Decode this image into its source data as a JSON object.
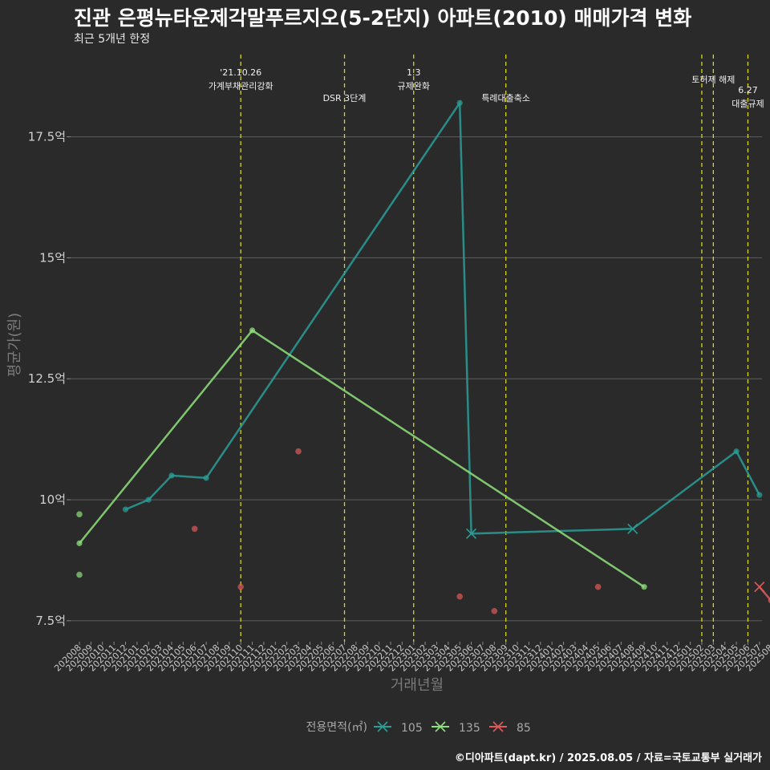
{
  "title": "진관 은평뉴타운제각말푸르지오(5-2단지) 아파트(2010) 매매가격 변화",
  "subtitle": "최근 5개년 한정",
  "caption": "©디아파트(dapt.kr) / 2025.08.05 / 자료=국토교통부 실거래가",
  "chart_data": {
    "type": "line",
    "xlabel": "거래년월",
    "ylabel": "평균가(원)",
    "ylim": [
      7.2,
      19.2
    ],
    "y_ticks": [
      7.5,
      10,
      12.5,
      15,
      17.5
    ],
    "y_tick_labels": [
      "7.5억",
      "10억",
      "12.5억",
      "15억",
      "17.5억"
    ],
    "grid": true,
    "legend_title": "전용면적(㎡)",
    "legend_position": "bottom",
    "x_categories": [
      "202008",
      "202009",
      "202010",
      "202011",
      "202012",
      "202101",
      "202102",
      "202103",
      "202104",
      "202105",
      "202106",
      "202107",
      "202108",
      "202109",
      "202110",
      "202111",
      "202112",
      "202201",
      "202202",
      "202203",
      "202204",
      "202205",
      "202206",
      "202207",
      "202208",
      "202209",
      "202210",
      "202211",
      "202212",
      "202301",
      "202302",
      "202303",
      "202304",
      "202305",
      "202306",
      "202307",
      "202308",
      "202309",
      "202310",
      "202311",
      "202312",
      "202401",
      "202402",
      "202403",
      "202404",
      "202405",
      "202406",
      "202407",
      "202408",
      "202409",
      "202410",
      "202411",
      "202412",
      "202501",
      "202502",
      "202503",
      "202504",
      "202505",
      "202506",
      "202507",
      "202508"
    ],
    "events": [
      {
        "x": "202110",
        "lines": [
          "'21.10.26",
          "가계부채관리강화"
        ],
        "row": 0
      },
      {
        "x": "202207",
        "lines": [
          "DSR 3단계"
        ],
        "row": 2
      },
      {
        "x": "202301",
        "lines": [
          "1.3",
          "규제완화"
        ],
        "row": 0
      },
      {
        "x": "202309",
        "lines": [
          "특례대출축소"
        ],
        "row": 2
      },
      {
        "x": "202502",
        "lines": [],
        "row": 1
      },
      {
        "x": "202503",
        "lines": [
          "토허제 해제"
        ],
        "row": 1
      },
      {
        "x": "202506",
        "lines": [
          "6.27",
          "대출규제"
        ],
        "row": 3
      }
    ],
    "series": [
      {
        "name": "105",
        "color": "#2a9d96",
        "line": [
          {
            "x": "202012",
            "y": 9.8
          },
          {
            "x": "202102",
            "y": 10.0
          },
          {
            "x": "202104",
            "y": 10.5
          },
          {
            "x": "202107",
            "y": 10.45
          },
          {
            "x": "202305",
            "y": 18.2
          },
          {
            "x": "202306",
            "y": 9.3
          },
          {
            "x": "202408",
            "y": 9.4
          },
          {
            "x": "202505",
            "y": 11.0
          },
          {
            "x": "202507",
            "y": 10.1
          }
        ],
        "x_markers": [
          "202306",
          "202408"
        ]
      },
      {
        "name": "135",
        "color": "#8ee07a",
        "line": [
          {
            "x": "202008",
            "y": 9.1
          },
          {
            "x": "202111",
            "y": 13.5
          },
          {
            "x": "202409",
            "y": 8.2
          }
        ],
        "points": [
          {
            "x": "202008",
            "y": 9.7
          },
          {
            "x": "202008",
            "y": 8.45
          }
        ],
        "x_markers": []
      },
      {
        "name": "85",
        "color": "#e05a5a",
        "line": [
          {
            "x": "202507",
            "y": 8.2
          },
          {
            "x": "202508",
            "y": 7.92
          }
        ],
        "points": [
          {
            "x": "202106",
            "y": 9.4
          },
          {
            "x": "202110",
            "y": 8.2
          },
          {
            "x": "202203",
            "y": 11.0
          },
          {
            "x": "202305",
            "y": 8.0
          },
          {
            "x": "202308",
            "y": 7.7
          },
          {
            "x": "202405",
            "y": 8.2
          }
        ],
        "x_markers": [
          "202507"
        ]
      }
    ]
  }
}
